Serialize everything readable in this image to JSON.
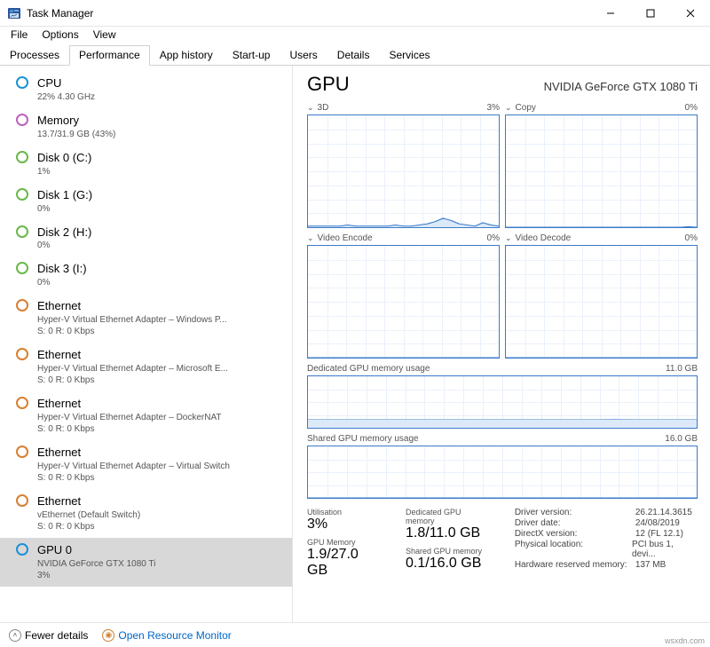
{
  "window": {
    "title": "Task Manager"
  },
  "menu": [
    "File",
    "Options",
    "View"
  ],
  "tabs": [
    "Processes",
    "Performance",
    "App history",
    "Start-up",
    "Users",
    "Details",
    "Services"
  ],
  "activeTab": 1,
  "sidebar": {
    "items": [
      {
        "name": "CPU",
        "sub": "22% 4.30 GHz",
        "color": "#1e90d8"
      },
      {
        "name": "Memory",
        "sub": "13.7/31.9 GB (43%)",
        "color": "#c060c0"
      },
      {
        "name": "Disk 0 (C:)",
        "sub": "1%",
        "color": "#6bb84a"
      },
      {
        "name": "Disk 1 (G:)",
        "sub": "0%",
        "color": "#6bb84a"
      },
      {
        "name": "Disk 2 (H:)",
        "sub": "0%",
        "color": "#6bb84a"
      },
      {
        "name": "Disk 3 (I:)",
        "sub": "0%",
        "color": "#6bb84a"
      },
      {
        "name": "Ethernet",
        "sub": "Hyper-V Virtual Ethernet Adapter – Windows P...",
        "sub2": "S: 0 R: 0 Kbps",
        "color": "#d88030"
      },
      {
        "name": "Ethernet",
        "sub": "Hyper-V Virtual Ethernet Adapter – Microsoft E...",
        "sub2": "S: 0 R: 0 Kbps",
        "color": "#d88030"
      },
      {
        "name": "Ethernet",
        "sub": "Hyper-V Virtual Ethernet Adapter – DockerNAT",
        "sub2": "S: 0 R: 0 Kbps",
        "color": "#d88030"
      },
      {
        "name": "Ethernet",
        "sub": "Hyper-V Virtual Ethernet Adapter – Virtual Switch",
        "sub2": "S: 0 R: 0 Kbps",
        "color": "#d88030"
      },
      {
        "name": "Ethernet",
        "sub": "vEthernet (Default Switch)",
        "sub2": "S: 0 R: 0 Kbps",
        "color": "#d88030"
      },
      {
        "name": "GPU 0",
        "sub": "NVIDIA GeForce GTX 1080 Ti",
        "sub2": "3%",
        "color": "#1e90d8",
        "selected": true
      }
    ]
  },
  "main": {
    "heading": "GPU",
    "device": "NVIDIA GeForce GTX 1080 Ti",
    "charts": {
      "grid": [
        {
          "label": "3D",
          "pct": "3%",
          "series": [
            1,
            1,
            1,
            1,
            1,
            2,
            1,
            1,
            1,
            1,
            1,
            2,
            1,
            1,
            2,
            3,
            5,
            8,
            6,
            3,
            2,
            1,
            4,
            2,
            1
          ]
        },
        {
          "label": "Copy",
          "pct": "0%",
          "series": [
            0,
            0,
            0,
            0,
            0,
            0,
            0,
            0,
            0,
            0,
            0,
            0,
            0,
            0,
            0,
            0,
            0,
            0,
            0,
            0,
            0,
            0,
            0,
            0.5,
            0
          ]
        },
        {
          "label": "Video Encode",
          "pct": "0%",
          "series": [
            0,
            0,
            0,
            0,
            0,
            0,
            0,
            0,
            0,
            0,
            0,
            0,
            0,
            0,
            0,
            0,
            0,
            0,
            0,
            0,
            0,
            0,
            0,
            0,
            0
          ]
        },
        {
          "label": "Video Decode",
          "pct": "0%",
          "series": [
            0,
            0,
            0,
            0,
            0,
            0,
            0,
            0,
            0,
            0,
            0,
            0,
            0,
            0,
            0,
            0,
            0,
            0,
            0,
            0,
            0,
            0,
            0,
            0,
            0
          ]
        }
      ],
      "full": [
        {
          "label": "Dedicated GPU memory usage",
          "max": "11.0 GB",
          "series": [
            16,
            16,
            16,
            16,
            16,
            16,
            16,
            16,
            16,
            16,
            16,
            16,
            16,
            16,
            16,
            16,
            16,
            16,
            16,
            17,
            16,
            16,
            16,
            16,
            16
          ],
          "ymax": 100
        },
        {
          "label": "Shared GPU memory usage",
          "max": "16.0 GB",
          "series": [
            0.5,
            0.5,
            0.5,
            0.5,
            0.5,
            0.5,
            0.5,
            0.5,
            0.5,
            0.5,
            0.5,
            0.5,
            0.5,
            0.5,
            0.5,
            0.5,
            0.5,
            0.5,
            0.5,
            0.5,
            0.5,
            0.5,
            0.5,
            0.5,
            0.5
          ],
          "ymax": 100
        }
      ],
      "style": {
        "line_color": "#3a7bc8",
        "fill_color": "#dce9f8",
        "grid_color": "#eaf1fb",
        "border_color": "#3a7bc8"
      }
    },
    "stats": {
      "col1": [
        {
          "label": "Utilisation",
          "value": "3%"
        },
        {
          "label": "GPU Memory",
          "value": "1.9/27.0 GB"
        }
      ],
      "col2": [
        {
          "label": "Dedicated GPU memory",
          "value": "1.8/11.0 GB"
        },
        {
          "label": "Shared GPU memory",
          "value": "0.1/16.0 GB"
        }
      ],
      "details": [
        {
          "label": "Driver version:",
          "value": "26.21.14.3615"
        },
        {
          "label": "Driver date:",
          "value": "24/08/2019"
        },
        {
          "label": "DirectX version:",
          "value": "12 (FL 12.1)"
        },
        {
          "label": "Physical location:",
          "value": "PCI bus 1, devi..."
        },
        {
          "label": "Hardware reserved memory:",
          "value": "137 MB"
        }
      ]
    }
  },
  "footer": {
    "fewer": "Fewer details",
    "resmon": "Open Resource Monitor"
  },
  "watermark": "wsxdn.com"
}
